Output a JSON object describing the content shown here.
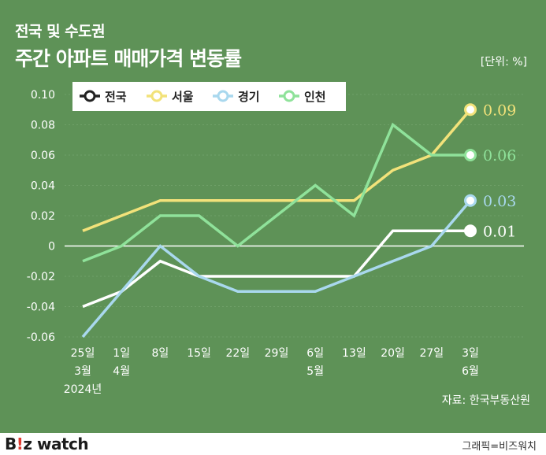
{
  "header": {
    "title_line1": "전국 및 수도권",
    "title_line2": "주간 아파트 매매가격 변동률",
    "unit": "[단위: %]"
  },
  "source": "자료: 한국부동산원",
  "footer": {
    "brand_main": "B",
    "brand_accent": "!",
    "brand_rest": "z watch",
    "credit": "그래픽=비즈워치"
  },
  "colors": {
    "background": "#5e9257",
    "grid": "#6fa068",
    "zero_line": "#ffffff",
    "legend_box": "#ffffff"
  },
  "chart_data": {
    "type": "line",
    "x_labels": [
      [
        "25일",
        "3월",
        "2024년"
      ],
      [
        "1일",
        "4월"
      ],
      [
        "8일"
      ],
      [
        "15일"
      ],
      [
        "22일"
      ],
      [
        "29일"
      ],
      [
        "6일",
        "5월"
      ],
      [
        "13일"
      ],
      [
        "20일"
      ],
      [
        "27일"
      ],
      [
        "3일",
        "6월"
      ]
    ],
    "ylim": [
      -0.06,
      0.1
    ],
    "y_ticks": [
      0.1,
      0.08,
      0.06,
      0.04,
      0.02,
      0,
      -0.02,
      -0.04,
      -0.06
    ],
    "y_tick_labels": [
      "0.10",
      "0.08",
      "0.06",
      "0.04",
      "0.02",
      "0",
      "-0.02",
      "-0.04",
      "-0.06"
    ],
    "grid": true,
    "legend_position": "top",
    "series": [
      {
        "name": "전국",
        "color": "#ffffff",
        "values": [
          -0.04,
          -0.03,
          -0.01,
          -0.02,
          -0.02,
          -0.02,
          -0.02,
          -0.02,
          0.01,
          0.01,
          0.01
        ],
        "end_label": "0.01"
      },
      {
        "name": "서울",
        "color": "#f2e27a",
        "values": [
          0.01,
          0.02,
          0.03,
          0.03,
          0.03,
          0.03,
          0.03,
          0.03,
          0.05,
          0.06,
          0.09
        ],
        "end_label": "0.09"
      },
      {
        "name": "경기",
        "color": "#a9d8ee",
        "values": [
          -0.06,
          -0.03,
          0.0,
          -0.02,
          -0.03,
          -0.03,
          -0.03,
          -0.02,
          -0.01,
          0.0,
          0.03
        ],
        "end_label": "0.03"
      },
      {
        "name": "인천",
        "color": "#8fe29a",
        "values": [
          -0.01,
          0.0,
          0.02,
          0.02,
          0.0,
          0.02,
          0.04,
          0.02,
          0.08,
          0.06,
          0.06
        ],
        "end_label": "0.06"
      }
    ]
  }
}
